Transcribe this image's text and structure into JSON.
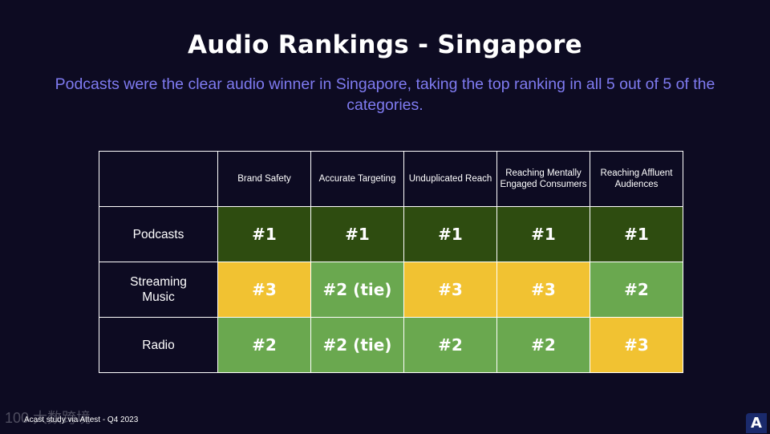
{
  "title": "Audio Rankings - Singapore",
  "subtitle": "Podcasts were the clear audio winner in Singapore, taking the top ranking in all 5 out of 5 of the categories.",
  "table": {
    "columns": [
      "Brand Safety",
      "Accurate Targeting",
      "Unduplicated Reach",
      "Reaching Mentally Engaged Consumers",
      "Reaching Affluent Audiences"
    ],
    "rows": [
      {
        "label": "Podcasts",
        "cells": [
          {
            "value": "#1",
            "rank": 1
          },
          {
            "value": "#1",
            "rank": 1
          },
          {
            "value": "#1",
            "rank": 1
          },
          {
            "value": "#1",
            "rank": 1
          },
          {
            "value": "#1",
            "rank": 1
          }
        ]
      },
      {
        "label": "Streaming Music",
        "cells": [
          {
            "value": "#3",
            "rank": 3
          },
          {
            "value": "#2 (tie)",
            "rank": 2
          },
          {
            "value": "#3",
            "rank": 3
          },
          {
            "value": "#3",
            "rank": 3
          },
          {
            "value": "#2",
            "rank": 2
          }
        ]
      },
      {
        "label": "Radio",
        "cells": [
          {
            "value": "#2",
            "rank": 2
          },
          {
            "value": "#2 (tie)",
            "rank": 2
          },
          {
            "value": "#2",
            "rank": 2
          },
          {
            "value": "#2",
            "rank": 2
          },
          {
            "value": "#3",
            "rank": 3
          }
        ]
      }
    ]
  },
  "colors": {
    "background": "#0d0b22",
    "subtitle": "#7f7bf1",
    "rank1": "#2e4c10",
    "rank2": "#6aa84f",
    "rank3": "#f1c232"
  },
  "footer": "Acast study via Attest - Q4 2023",
  "watermark": "100 大数跨境",
  "logo_letter": "A"
}
